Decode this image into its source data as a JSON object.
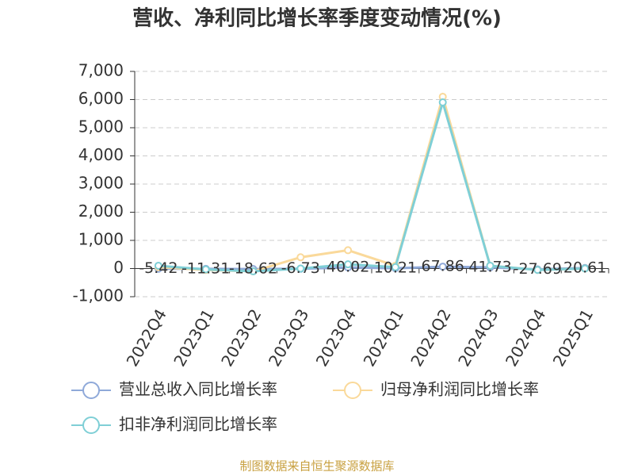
{
  "chart_data": {
    "type": "line",
    "title": "营收、净利同比增长率季度变动情况(%)",
    "categories": [
      "2022Q4",
      "2023Q1",
      "2023Q2",
      "2023Q3",
      "2023Q4",
      "2024Q1",
      "2024Q2",
      "2024Q3",
      "2024Q4",
      "2025Q1"
    ],
    "series": [
      {
        "name": "营业总收入同比增长率",
        "color": "#8fa9d9",
        "values": [
          -5.42,
          -11.31,
          -18.62,
          -6.73,
          40.02,
          10.21,
          67.86,
          41.73,
          -27.69,
          20.61
        ]
      },
      {
        "name": "归母净利润同比增长率",
        "color": "#fad99a",
        "values": [
          50,
          -50,
          -100,
          400,
          650,
          100,
          6100,
          100,
          -50,
          0
        ]
      },
      {
        "name": "扣非净利润同比增长率",
        "color": "#7fcfd6",
        "values": [
          100,
          -30,
          -100,
          0,
          150,
          50,
          5900,
          100,
          -50,
          0
        ]
      }
    ],
    "ylim": [
      -1000,
      7000
    ],
    "yticks": [
      {
        "value": -1000,
        "label": "-1,000"
      },
      0,
      {
        "value": 1000,
        "label": "1,000"
      },
      {
        "value": 2000,
        "label": "2,000"
      },
      {
        "value": 3000,
        "label": "3,000"
      },
      {
        "value": 4000,
        "label": "4,000"
      },
      {
        "value": 5000,
        "label": "5,000"
      },
      {
        "value": 6000,
        "label": "6,000"
      },
      {
        "value": 7000,
        "label": "7,000"
      }
    ],
    "grid": true,
    "source": "制图数据来自恒生聚源数据库"
  }
}
